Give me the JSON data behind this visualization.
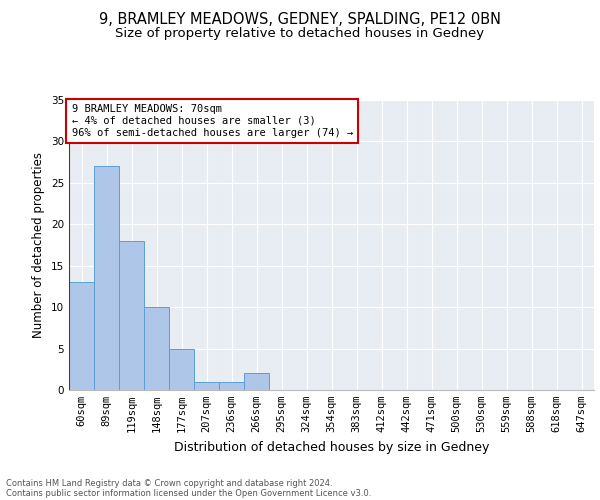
{
  "title1": "9, BRAMLEY MEADOWS, GEDNEY, SPALDING, PE12 0BN",
  "title2": "Size of property relative to detached houses in Gedney",
  "xlabel": "Distribution of detached houses by size in Gedney",
  "ylabel": "Number of detached properties",
  "categories": [
    "60sqm",
    "89sqm",
    "119sqm",
    "148sqm",
    "177sqm",
    "207sqm",
    "236sqm",
    "266sqm",
    "295sqm",
    "324sqm",
    "354sqm",
    "383sqm",
    "412sqm",
    "442sqm",
    "471sqm",
    "500sqm",
    "530sqm",
    "559sqm",
    "588sqm",
    "618sqm",
    "647sqm"
  ],
  "values": [
    13,
    27,
    18,
    10,
    5,
    1,
    1,
    2,
    0,
    0,
    0,
    0,
    0,
    0,
    0,
    0,
    0,
    0,
    0,
    0,
    0
  ],
  "bar_color": "#aec6e8",
  "bar_edge_color": "#5a9fd4",
  "background_color": "#e8edf4",
  "grid_color": "#ffffff",
  "annotation_box_text": "9 BRAMLEY MEADOWS: 70sqm\n← 4% of detached houses are smaller (3)\n96% of semi-detached houses are larger (74) →",
  "annotation_box_color": "#ffffff",
  "annotation_box_edge_color": "#cc0000",
  "vline_color": "#cc0000",
  "ylim": [
    0,
    35
  ],
  "yticks": [
    0,
    5,
    10,
    15,
    20,
    25,
    30,
    35
  ],
  "footer1": "Contains HM Land Registry data © Crown copyright and database right 2024.",
  "footer2": "Contains public sector information licensed under the Open Government Licence v3.0.",
  "title_fontsize": 10.5,
  "subtitle_fontsize": 9.5,
  "tick_fontsize": 7.5,
  "ylabel_fontsize": 8.5,
  "xlabel_fontsize": 9,
  "annotation_fontsize": 7.5,
  "footer_fontsize": 6
}
